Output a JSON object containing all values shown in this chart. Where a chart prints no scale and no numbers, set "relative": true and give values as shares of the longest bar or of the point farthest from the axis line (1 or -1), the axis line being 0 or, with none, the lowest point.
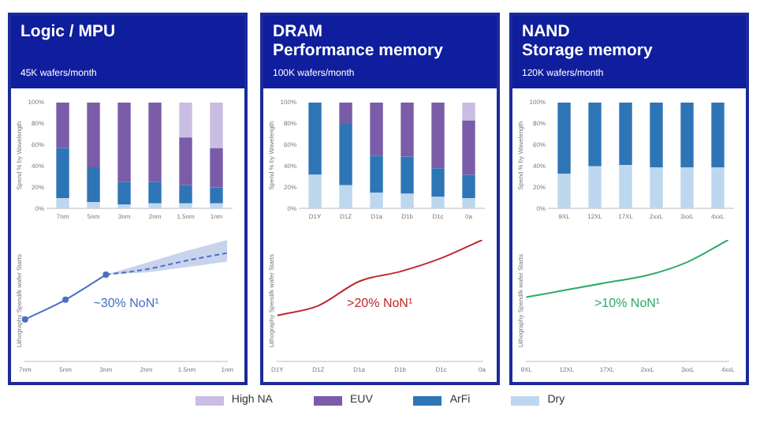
{
  "chart_data": [
    {
      "type": "bar",
      "title": "Logic / MPU",
      "subtitle": "45K wafers/month",
      "ylabel": "Spend % by Wavelength",
      "categories": [
        "7nm",
        "5nm",
        "3nm",
        "2nm",
        "1.5nm",
        "1nm"
      ],
      "stacked": true,
      "ylim": [
        0,
        100
      ],
      "yticks": [
        {
          "value": 0,
          "label": "0%"
        },
        {
          "value": 20,
          "label": "20%"
        },
        {
          "value": 40,
          "label": "40%"
        },
        {
          "value": 60,
          "label": "60%"
        },
        {
          "value": 80,
          "label": "80%"
        },
        {
          "value": 100,
          "label": "100%"
        }
      ],
      "legend": "bottom",
      "series": [
        {
          "name": "Dry",
          "color": "#bdd7ee",
          "values": [
            10,
            6,
            4,
            5,
            5,
            5
          ]
        },
        {
          "name": "ArFi",
          "color": "#2e75b6",
          "values": [
            47,
            33,
            21,
            20,
            17,
            15
          ]
        },
        {
          "name": "EUV",
          "color": "#7a5ca8",
          "values": [
            43,
            61,
            75,
            75,
            45,
            37
          ]
        },
        {
          "name": "High NA",
          "color": "#c9bde3",
          "values": [
            0,
            0,
            0,
            0,
            33,
            43
          ]
        }
      ]
    },
    {
      "type": "line",
      "relative": true,
      "ylabel": "Lithography Spend/k wafer Starts",
      "categories": [
        "7nm",
        "5nm",
        "3nm",
        "2nm",
        "1.5nm",
        "1nm"
      ],
      "annotations": [
        "~30% NoN¹"
      ],
      "series": [
        {
          "color": "#4a6fc4",
          "marker": "circle",
          "line_style": "solid",
          "values": [
            0.39,
            0.57,
            0.8,
            null,
            null,
            null
          ]
        },
        {
          "color": "#4a6fc4",
          "marker": "none",
          "line_style": "dashed",
          "values": [
            null,
            null,
            0.8,
            0.85,
            0.93,
            1
          ],
          "lower": [
            null,
            null,
            0.8,
            0.82,
            0.87,
            0.92
          ],
          "upper": [
            null,
            null,
            0.8,
            0.91,
            1.02,
            1.12
          ]
        }
      ]
    },
    {
      "type": "bar",
      "title": "DRAM\nPerformance memory",
      "subtitle": "100K wafers/month",
      "ylabel": "Spend % by Wavelength",
      "categories": [
        "D1Y",
        "D1Z",
        "D1a",
        "D1b",
        "D1c",
        "0a"
      ],
      "stacked": true,
      "ylim": [
        0,
        100
      ],
      "yticks": [
        {
          "value": 0,
          "label": "0%"
        },
        {
          "value": 20,
          "label": "20%"
        },
        {
          "value": 40,
          "label": "40%"
        },
        {
          "value": 60,
          "label": "60%"
        },
        {
          "value": 80,
          "label": "80%"
        },
        {
          "value": 100,
          "label": "100%"
        }
      ],
      "series": [
        {
          "color": "#bdd7ee",
          "values": [
            32,
            22,
            15,
            14,
            11,
            10
          ]
        },
        {
          "color": "#2e75b6",
          "values": [
            68,
            58,
            35,
            35,
            27,
            22
          ]
        },
        {
          "color": "#7a5ca8",
          "values": [
            0,
            20,
            50,
            51,
            62,
            51
          ]
        },
        {
          "color": "#c9bde3",
          "values": [
            0,
            0,
            0,
            0,
            0,
            17
          ]
        }
      ]
    },
    {
      "type": "line",
      "relative": true,
      "ylabel": "Lithography Spend/k wafer Starts",
      "categories": [
        "D1Y",
        "D1Z",
        "D1a",
        "D1b",
        "D1c",
        "0a"
      ],
      "annotations": [
        ">20% NoN¹"
      ],
      "series": [
        {
          "color": "#c0282d",
          "marker": "none",
          "line_style": "solid",
          "values": [
            0.38,
            0.46,
            0.66,
            0.74,
            0.85,
            1
          ]
        }
      ]
    },
    {
      "type": "bar",
      "title": "NAND\nStorage memory",
      "subtitle": "120K wafers/month",
      "ylabel": "Spend % by Wavelength",
      "categories": [
        "9XL",
        "12XL",
        "17XL",
        "2xxL",
        "3xxL",
        "4xxL"
      ],
      "stacked": true,
      "ylim": [
        0,
        100
      ],
      "yticks": [
        {
          "value": 0,
          "label": "0%"
        },
        {
          "value": 20,
          "label": "20%"
        },
        {
          "value": 40,
          "label": "40%"
        },
        {
          "value": 60,
          "label": "60%"
        },
        {
          "value": 80,
          "label": "80%"
        },
        {
          "value": 100,
          "label": "100%"
        }
      ],
      "series": [
        {
          "color": "#bdd7ee",
          "values": [
            33,
            40,
            41,
            39,
            39,
            39
          ]
        },
        {
          "color": "#2e75b6",
          "values": [
            67,
            60,
            59,
            61,
            61,
            61
          ]
        }
      ]
    },
    {
      "type": "line",
      "relative": true,
      "ylabel": "Lithography Spend/k wafer Starts",
      "categories": [
        "9XL",
        "12XL",
        "17XL",
        "2xxL",
        "3xxL",
        "4xxL"
      ],
      "annotations": [
        ">10% NoN¹"
      ],
      "series": [
        {
          "color": "#2eaa6a",
          "marker": "none",
          "line_style": "solid",
          "values": [
            0.53,
            0.59,
            0.65,
            0.71,
            0.82,
            1
          ]
        }
      ]
    }
  ]
}
